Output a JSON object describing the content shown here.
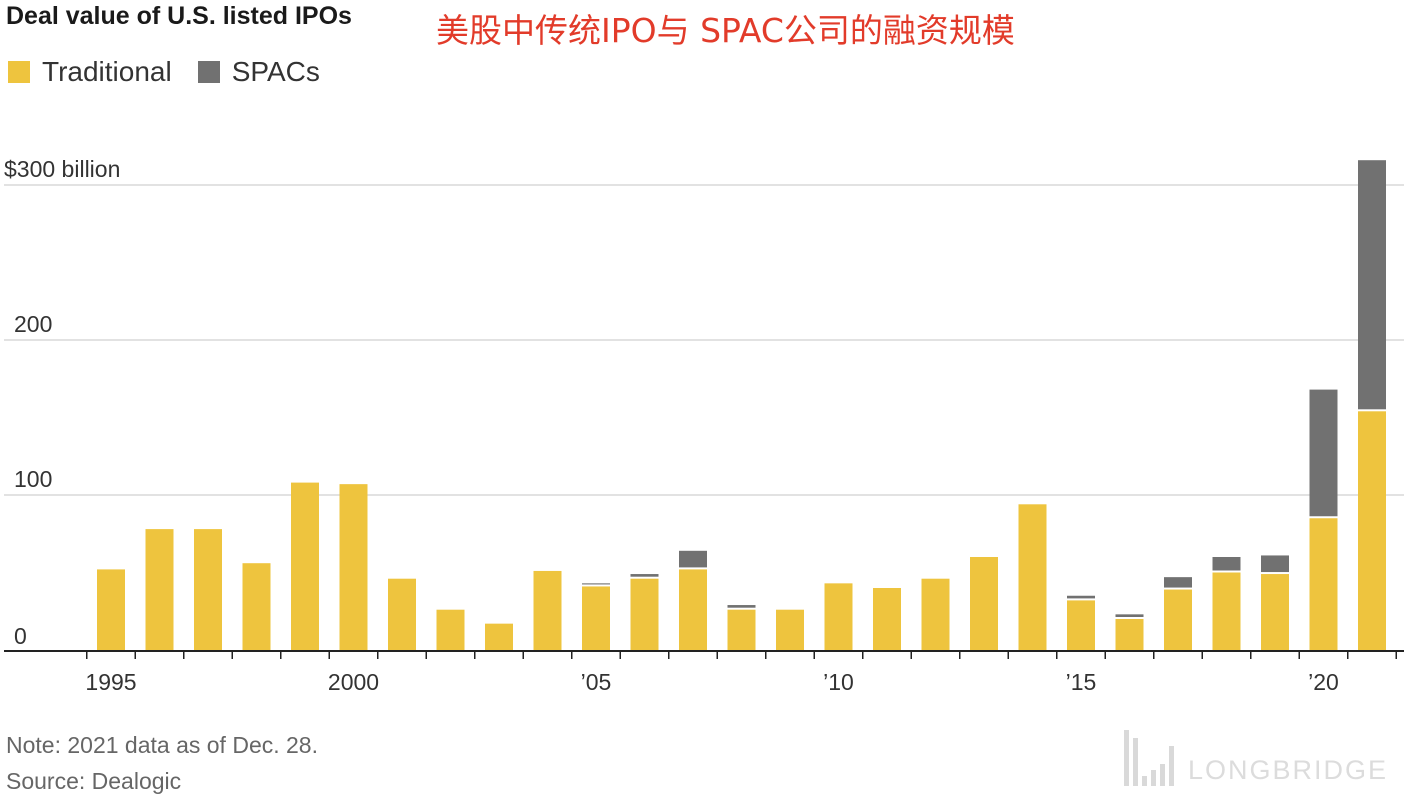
{
  "header": {
    "title": "Deal value of U.S. listed IPOs",
    "cn_title": "美股中传统IPO与 SPAC公司的融资规模"
  },
  "legend": {
    "items": [
      {
        "label": "Traditional",
        "color": "#eec43e"
      },
      {
        "label": "SPACs",
        "color": "#717171"
      }
    ]
  },
  "chart_data": {
    "type": "bar",
    "stacked": true,
    "categories": [
      "1995",
      "1996",
      "1997",
      "1998",
      "1999",
      "2000",
      "2001",
      "2002",
      "2003",
      "2004",
      "2005",
      "2006",
      "2007",
      "2008",
      "2009",
      "2010",
      "2011",
      "2012",
      "2013",
      "2014",
      "2015",
      "2016",
      "2017",
      "2018",
      "2019",
      "2020",
      "2021"
    ],
    "x_tick_labels": [
      {
        "category": "1995",
        "label": "1995"
      },
      {
        "category": "2000",
        "label": "2000"
      },
      {
        "category": "2005",
        "label": "’05"
      },
      {
        "category": "2010",
        "label": "’10"
      },
      {
        "category": "2015",
        "label": "’15"
      },
      {
        "category": "2020",
        "label": "’20"
      }
    ],
    "series": [
      {
        "name": "Traditional",
        "color": "#eec43e",
        "values": [
          52,
          78,
          78,
          56,
          108,
          107,
          46,
          26,
          17,
          51,
          41,
          46,
          52,
          26,
          26,
          43,
          40,
          46,
          60,
          94,
          32,
          20,
          39,
          50,
          49,
          85,
          154
        ]
      },
      {
        "name": "SPACs",
        "color": "#717171",
        "values": [
          0,
          0,
          0,
          0,
          0,
          0,
          0,
          0,
          0,
          0,
          2,
          3,
          12,
          3,
          0,
          0,
          0,
          0,
          0,
          0,
          3,
          3,
          8,
          10,
          12,
          83,
          162
        ]
      }
    ],
    "y_ticks": [
      0,
      100,
      200,
      300
    ],
    "y_tick_labels": [
      "0",
      "100",
      "200",
      "$300 billion"
    ],
    "ylim": [
      0,
      300
    ],
    "grid": true,
    "legend_position": "top-left"
  },
  "footer": {
    "note": "Note: 2021 data as of Dec. 28.",
    "source": "Source: Dealogic"
  },
  "watermark": {
    "text": "LONGBRIDGE"
  }
}
